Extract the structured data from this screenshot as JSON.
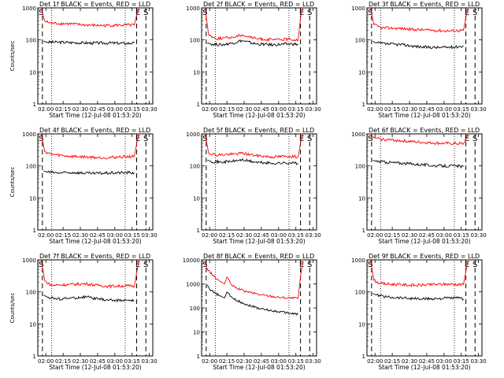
{
  "chart_data": [
    {
      "type": "line",
      "title": "Det 1f BLACK = Events, RED = LLD",
      "xlabel": "Start Time (12-Jul-08 01:53:20)",
      "ylabel": "Counts/sec",
      "yscale": "log",
      "ylim": [
        1,
        1000
      ],
      "yticks": [
        "1",
        "10",
        "100",
        "1000"
      ],
      "xlim": [
        "01:53",
        "03:33"
      ],
      "xticks": [
        "02:00",
        "02:15",
        "02:30",
        "02:45",
        "03:00",
        "03:15",
        "03:30"
      ],
      "markers": [
        {
          "label": "S",
          "time": "01:56"
        },
        {
          "label": "E",
          "time": "03:20"
        },
        {
          "label": "S",
          "time": "03:27"
        }
      ],
      "dashed_lines": [
        "01:57",
        "03:19",
        "03:27"
      ],
      "dotted_lines": [
        "02:05",
        "03:09"
      ],
      "series": [
        {
          "name": "BLACK = Events",
          "color": "#000000",
          "x": [
            "01:58",
            "02:01",
            "02:10",
            "02:25",
            "02:40",
            "02:55",
            "03:10",
            "03:17"
          ],
          "y": [
            90,
            85,
            85,
            82,
            80,
            80,
            78,
            80
          ]
        },
        {
          "name": "RED = LLD",
          "color": "#ff0000",
          "x": [
            "01:56",
            "01:59",
            "02:05",
            "02:20",
            "02:35",
            "02:50",
            "03:05",
            "03:17",
            "03:19",
            "03:21"
          ],
          "y": [
            1000,
            380,
            330,
            320,
            290,
            280,
            290,
            290,
            600,
            1000
          ]
        }
      ]
    },
    {
      "type": "line",
      "title": "Det 2f BLACK = Events, RED = LLD",
      "xlabel": "Start Time (12-Jul-08 01:53:20)",
      "ylabel": "",
      "yscale": "log",
      "ylim": [
        1,
        1000
      ],
      "yticks": [
        "1",
        "10",
        "100",
        "1000"
      ],
      "xlim": [
        "01:53",
        "03:33"
      ],
      "xticks": [
        "02:00",
        "02:15",
        "02:30",
        "02:45",
        "03:00",
        "03:15",
        "03:30"
      ],
      "markers": [
        {
          "label": "S",
          "time": "01:56"
        },
        {
          "label": "E",
          "time": "03:20"
        },
        {
          "label": "S",
          "time": "03:27"
        }
      ],
      "dashed_lines": [
        "01:57",
        "03:19",
        "03:27"
      ],
      "dotted_lines": [
        "02:05",
        "03:09"
      ],
      "series": [
        {
          "name": "BLACK = Events",
          "color": "#000000",
          "x": [
            "01:58",
            "02:01",
            "02:10",
            "02:20",
            "02:28",
            "02:40",
            "02:55",
            "03:10",
            "03:17"
          ],
          "y": [
            80,
            75,
            70,
            80,
            95,
            75,
            70,
            75,
            72
          ]
        },
        {
          "name": "RED = LLD",
          "color": "#ff0000",
          "x": [
            "01:56",
            "01:59",
            "02:05",
            "02:20",
            "02:28",
            "02:40",
            "02:55",
            "03:10",
            "03:17",
            "03:19",
            "03:21"
          ],
          "y": [
            1000,
            150,
            110,
            120,
            145,
            110,
            100,
            105,
            100,
            500,
            1000
          ]
        }
      ]
    },
    {
      "type": "line",
      "title": "Det 3f BLACK = Events, RED = LLD",
      "xlabel": "Start Time (12-Jul-08 01:53:20)",
      "ylabel": "",
      "yscale": "log",
      "ylim": [
        1,
        1000
      ],
      "yticks": [
        "1",
        "10",
        "100",
        "1000"
      ],
      "xlim": [
        "01:53",
        "03:33"
      ],
      "xticks": [
        "02:00",
        "02:15",
        "02:30",
        "02:45",
        "03:00",
        "03:15",
        "03:30"
      ],
      "markers": [
        {
          "label": "S",
          "time": "01:56"
        },
        {
          "label": "E",
          "time": "03:20"
        },
        {
          "label": "S",
          "time": "03:27"
        }
      ],
      "dashed_lines": [
        "01:57",
        "03:19",
        "03:27"
      ],
      "dotted_lines": [
        "02:05",
        "03:09"
      ],
      "series": [
        {
          "name": "BLACK = Events",
          "color": "#000000",
          "x": [
            "01:58",
            "02:01",
            "02:10",
            "02:25",
            "02:40",
            "02:55",
            "03:10",
            "03:17"
          ],
          "y": [
            90,
            80,
            75,
            70,
            60,
            58,
            60,
            65
          ]
        },
        {
          "name": "RED = LLD",
          "color": "#ff0000",
          "x": [
            "01:56",
            "01:59",
            "02:05",
            "02:20",
            "02:35",
            "02:50",
            "03:05",
            "03:17",
            "03:19",
            "03:21"
          ],
          "y": [
            1000,
            300,
            240,
            230,
            210,
            200,
            190,
            200,
            500,
            1000
          ]
        }
      ]
    },
    {
      "type": "line",
      "title": "Det 4f BLACK = Events, RED = LLD",
      "xlabel": "Start Time (12-Jul-08 01:53:20)",
      "ylabel": "Counts/sec",
      "yscale": "log",
      "ylim": [
        1,
        1000
      ],
      "yticks": [
        "1",
        "10",
        "100",
        "1000"
      ],
      "xlim": [
        "01:53",
        "03:33"
      ],
      "xticks": [
        "02:00",
        "02:15",
        "02:30",
        "02:45",
        "03:00",
        "03:15",
        "03:30"
      ],
      "markers": [
        {
          "label": "S",
          "time": "01:56"
        },
        {
          "label": "E",
          "time": "03:20"
        },
        {
          "label": "S",
          "time": "03:27"
        }
      ],
      "dashed_lines": [
        "01:57",
        "03:19",
        "03:27"
      ],
      "dotted_lines": [
        "02:05",
        "03:09"
      ],
      "series": [
        {
          "name": "BLACK = Events",
          "color": "#000000",
          "x": [
            "01:58",
            "02:01",
            "02:10",
            "02:25",
            "02:40",
            "02:55",
            "03:10",
            "03:17"
          ],
          "y": [
            70,
            65,
            60,
            62,
            58,
            60,
            62,
            60
          ]
        },
        {
          "name": "RED = LLD",
          "color": "#ff0000",
          "x": [
            "01:56",
            "01:59",
            "02:05",
            "02:20",
            "02:35",
            "02:50",
            "03:05",
            "03:17",
            "03:19",
            "03:21"
          ],
          "y": [
            1000,
            280,
            230,
            200,
            190,
            180,
            190,
            200,
            500,
            1000
          ]
        }
      ]
    },
    {
      "type": "line",
      "title": "Det 5f BLACK = Events, RED = LLD",
      "xlabel": "Start Time (12-Jul-08 01:53:20)",
      "ylabel": "",
      "yscale": "log",
      "ylim": [
        1,
        1000
      ],
      "yticks": [
        "1",
        "10",
        "100",
        "1000"
      ],
      "xlim": [
        "01:53",
        "03:33"
      ],
      "xticks": [
        "02:00",
        "02:15",
        "02:30",
        "02:45",
        "03:00",
        "03:15",
        "03:30"
      ],
      "markers": [
        {
          "label": "S",
          "time": "01:56"
        },
        {
          "label": "E",
          "time": "03:20"
        },
        {
          "label": "S",
          "time": "03:27"
        }
      ],
      "dashed_lines": [
        "01:57",
        "03:19",
        "03:27"
      ],
      "dotted_lines": [
        "02:05",
        "03:09"
      ],
      "series": [
        {
          "name": "BLACK = Events",
          "color": "#000000",
          "x": [
            "01:58",
            "02:01",
            "02:10",
            "02:20",
            "02:28",
            "02:40",
            "02:55",
            "03:10",
            "03:17"
          ],
          "y": [
            150,
            140,
            130,
            140,
            155,
            130,
            120,
            125,
            120
          ]
        },
        {
          "name": "RED = LLD",
          "color": "#ff0000",
          "x": [
            "01:56",
            "01:59",
            "02:05",
            "02:20",
            "02:28",
            "02:40",
            "02:55",
            "03:10",
            "03:17",
            "03:19",
            "03:21"
          ],
          "y": [
            1000,
            260,
            220,
            230,
            250,
            210,
            190,
            200,
            190,
            500,
            1000
          ]
        }
      ]
    },
    {
      "type": "line",
      "title": "Det 6f BLACK = Events, RED = LLD",
      "xlabel": "Start Time (12-Jul-08 01:53:20)",
      "ylabel": "",
      "yscale": "log",
      "ylim": [
        1,
        1000
      ],
      "yticks": [
        "1",
        "10",
        "100",
        "1000"
      ],
      "xlim": [
        "01:53",
        "03:33"
      ],
      "xticks": [
        "02:00",
        "02:15",
        "02:30",
        "02:45",
        "03:00",
        "03:15",
        "03:30"
      ],
      "markers": [
        {
          "label": "S",
          "time": "01:56"
        },
        {
          "label": "E",
          "time": "03:20"
        },
        {
          "label": "S",
          "time": "03:27"
        }
      ],
      "dashed_lines": [
        "01:57",
        "03:19",
        "03:27"
      ],
      "dotted_lines": [
        "02:05",
        "03:09"
      ],
      "series": [
        {
          "name": "BLACK = Events",
          "color": "#000000",
          "x": [
            "01:58",
            "02:01",
            "02:10",
            "02:25",
            "02:40",
            "02:55",
            "03:10",
            "03:17"
          ],
          "y": [
            150,
            140,
            130,
            120,
            110,
            100,
            100,
            95
          ]
        },
        {
          "name": "RED = LLD",
          "color": "#ff0000",
          "x": [
            "01:56",
            "01:59",
            "02:05",
            "02:20",
            "02:35",
            "02:50",
            "03:05",
            "03:17",
            "03:19",
            "03:21"
          ],
          "y": [
            1000,
            750,
            680,
            620,
            560,
            520,
            500,
            490,
            700,
            1000
          ]
        }
      ]
    },
    {
      "type": "line",
      "title": "Det 7f BLACK = Events, RED = LLD",
      "xlabel": "Start Time (12-Jul-08 01:53:20)",
      "ylabel": "Counts/sec",
      "yscale": "log",
      "ylim": [
        1,
        1000
      ],
      "yticks": [
        "1",
        "10",
        "100",
        "1000"
      ],
      "xlim": [
        "01:53",
        "03:33"
      ],
      "xticks": [
        "02:00",
        "02:15",
        "02:30",
        "02:45",
        "03:00",
        "03:15",
        "03:30"
      ],
      "markers": [
        {
          "label": "S",
          "time": "01:56"
        },
        {
          "label": "E",
          "time": "03:20"
        },
        {
          "label": "S",
          "time": "03:27"
        }
      ],
      "dashed_lines": [
        "01:57",
        "03:19",
        "03:27"
      ],
      "dotted_lines": [
        "02:05",
        "03:09"
      ],
      "series": [
        {
          "name": "BLACK = Events",
          "color": "#000000",
          "x": [
            "01:58",
            "02:01",
            "02:10",
            "02:25",
            "02:35",
            "02:45",
            "02:55",
            "03:10",
            "03:17"
          ],
          "y": [
            80,
            70,
            60,
            65,
            70,
            60,
            55,
            55,
            52
          ]
        },
        {
          "name": "RED = LLD",
          "color": "#ff0000",
          "x": [
            "01:56",
            "01:59",
            "02:05",
            "02:20",
            "02:35",
            "02:45",
            "02:55",
            "03:10",
            "03:17",
            "03:19",
            "03:21"
          ],
          "y": [
            1000,
            220,
            160,
            170,
            180,
            160,
            150,
            155,
            150,
            400,
            1000
          ]
        }
      ]
    },
    {
      "type": "line",
      "title": "Det 8f BLACK = Events, RED = LLD",
      "xlabel": "Start Time (12-Jul-08 01:53:20)",
      "ylabel": "",
      "yscale": "log",
      "ylim": [
        1,
        10000
      ],
      "yticks": [
        "1",
        "10",
        "100",
        "1000",
        "10000"
      ],
      "xlim": [
        "01:53",
        "03:33"
      ],
      "xticks": [
        "02:00",
        "02:15",
        "02:30",
        "02:45",
        "03:00",
        "03:15",
        "03:30"
      ],
      "markers": [
        {
          "label": "S",
          "time": "01:56"
        },
        {
          "label": "E",
          "time": "03:20"
        },
        {
          "label": "S",
          "time": "03:27"
        }
      ],
      "dashed_lines": [
        "01:57",
        "03:19",
        "03:27"
      ],
      "dotted_lines": [
        "02:05",
        "03:09"
      ],
      "series": [
        {
          "name": "BLACK = Events",
          "color": "#000000",
          "x": [
            "01:58",
            "02:00",
            "02:05",
            "02:10",
            "02:13",
            "02:15",
            "02:20",
            "02:30",
            "02:45",
            "03:00",
            "03:10",
            "03:17"
          ],
          "y": [
            900,
            600,
            400,
            300,
            260,
            450,
            250,
            150,
            90,
            70,
            60,
            55
          ]
        },
        {
          "name": "RED = LLD",
          "color": "#ff0000",
          "x": [
            "01:56",
            "01:58",
            "02:05",
            "02:10",
            "02:13",
            "02:15",
            "02:20",
            "02:30",
            "02:45",
            "03:00",
            "03:10",
            "03:17",
            "03:19",
            "03:21"
          ],
          "y": [
            8000,
            4000,
            1800,
            1200,
            1000,
            1900,
            800,
            500,
            350,
            280,
            260,
            250,
            2000,
            8000
          ]
        }
      ]
    },
    {
      "type": "line",
      "title": "Det 9f BLACK = Events, RED = LLD",
      "xlabel": "Start Time (12-Jul-08 01:53:20)",
      "ylabel": "",
      "yscale": "log",
      "ylim": [
        1,
        1000
      ],
      "yticks": [
        "1",
        "10",
        "100",
        "1000"
      ],
      "xlim": [
        "01:53",
        "03:33"
      ],
      "xticks": [
        "02:00",
        "02:15",
        "02:30",
        "02:45",
        "03:00",
        "03:15",
        "03:30"
      ],
      "markers": [
        {
          "label": "S",
          "time": "01:56"
        },
        {
          "label": "E",
          "time": "03:20"
        },
        {
          "label": "S",
          "time": "03:27"
        }
      ],
      "dashed_lines": [
        "01:57",
        "03:19",
        "03:27"
      ],
      "dotted_lines": [
        "02:05",
        "03:09"
      ],
      "series": [
        {
          "name": "BLACK = Events",
          "color": "#000000",
          "x": [
            "01:58",
            "02:01",
            "02:10",
            "02:25",
            "02:40",
            "02:55",
            "03:10",
            "03:17"
          ],
          "y": [
            90,
            80,
            70,
            65,
            60,
            62,
            65,
            60
          ]
        },
        {
          "name": "RED = LLD",
          "color": "#ff0000",
          "x": [
            "01:56",
            "01:59",
            "02:05",
            "02:20",
            "02:35",
            "02:50",
            "03:05",
            "03:17",
            "03:19",
            "03:21"
          ],
          "y": [
            1000,
            230,
            180,
            170,
            160,
            170,
            175,
            170,
            450,
            1000
          ]
        }
      ]
    }
  ]
}
